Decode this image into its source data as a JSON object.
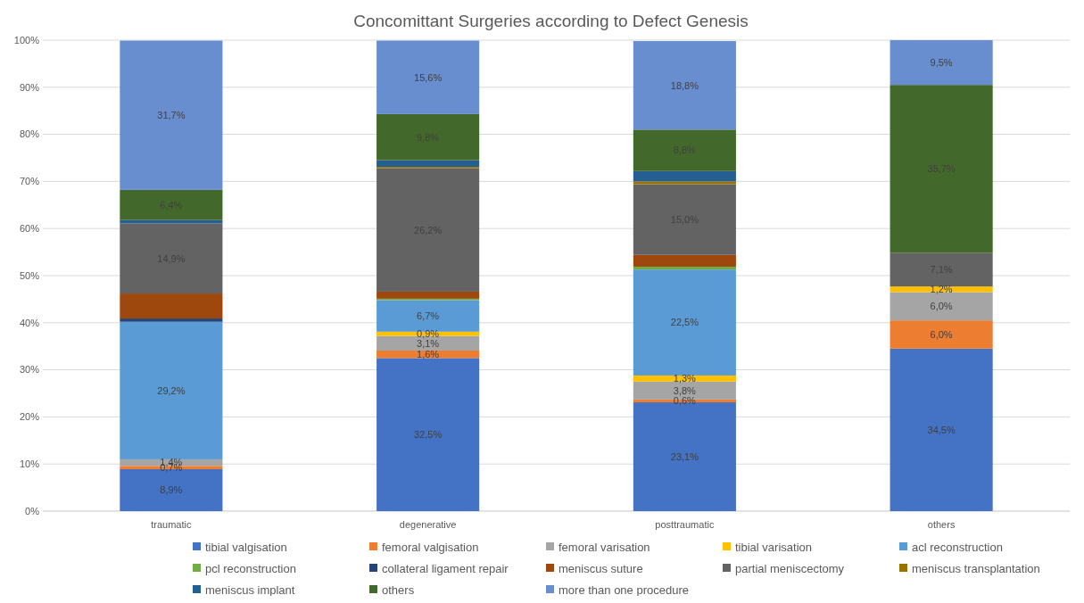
{
  "chart_data": {
    "type": "bar",
    "title": "Concomittant Surgeries according to Defect Genesis",
    "stacked": true,
    "grid": "y",
    "legend": "bottom",
    "categories": [
      "traumatic",
      "degenerative",
      "posttraumatic",
      "others"
    ],
    "ylim": [
      0,
      100
    ],
    "yticks": [
      {
        "value": 0,
        "label": "0%"
      },
      {
        "value": 10,
        "label": "10%"
      },
      {
        "value": 20,
        "label": "20%"
      },
      {
        "value": 30,
        "label": "30%"
      },
      {
        "value": 40,
        "label": "40%"
      },
      {
        "value": 50,
        "label": "50%"
      },
      {
        "value": 60,
        "label": "60%"
      },
      {
        "value": 70,
        "label": "70%"
      },
      {
        "value": 80,
        "label": "80%"
      },
      {
        "value": 90,
        "label": "90%"
      },
      {
        "value": 100,
        "label": "100%"
      }
    ],
    "series": [
      {
        "name": "tibial valgisation",
        "color": "#4472c4",
        "values": [
          8.9,
          32.5,
          23.1,
          34.5
        ],
        "value_labels": [
          "8,9%",
          "32,5%",
          "23,1%",
          "34,5%"
        ]
      },
      {
        "name": "femoral valgisation",
        "color": "#ed7d31",
        "values": [
          0.7,
          1.6,
          0.6,
          6.0
        ],
        "value_labels": [
          "0,7%",
          "1,6%",
          "0,6%",
          "6,0%"
        ]
      },
      {
        "name": "femoral varisation",
        "color": "#a5a5a5",
        "values": [
          1.4,
          3.1,
          3.8,
          6.0
        ],
        "value_labels": [
          "1,4%",
          "3,1%",
          "3,8%",
          "6,0%"
        ]
      },
      {
        "name": "tibial varisation",
        "color": "#ffc000",
        "values": [
          0,
          0.9,
          1.3,
          1.2
        ],
        "value_labels": [
          null,
          "0,9%",
          "1,3%",
          "1,2%"
        ]
      },
      {
        "name": "acl reconstruction",
        "color": "#5b9bd5",
        "values": [
          29.2,
          6.7,
          22.5,
          0
        ],
        "value_labels": [
          "29,2%",
          "6,7%",
          "22,5%",
          null
        ]
      },
      {
        "name": "pcl reconstruction",
        "color": "#70ad47",
        "values": [
          0,
          0.3,
          0.6,
          0
        ],
        "value_labels": [
          null,
          null,
          null,
          null
        ]
      },
      {
        "name": "collateral ligament repair",
        "color": "#264478",
        "values": [
          0.7,
          0,
          0,
          0
        ],
        "value_labels": [
          null,
          null,
          null,
          null
        ]
      },
      {
        "name": "meniscus suture",
        "color": "#9e480e",
        "values": [
          5.3,
          1.5,
          2.5,
          0
        ],
        "value_labels": [
          null,
          null,
          null,
          null
        ]
      },
      {
        "name": "partial meniscectomy",
        "color": "#636363",
        "values": [
          14.9,
          26.2,
          15.0,
          7.1
        ],
        "value_labels": [
          "14,9%",
          "26,2%",
          "15,0%",
          "7,1%"
        ]
      },
      {
        "name": "meniscus transplantation",
        "color": "#997300",
        "values": [
          0,
          0.3,
          0.6,
          0
        ],
        "value_labels": [
          null,
          null,
          null,
          null
        ]
      },
      {
        "name": "meniscus implant",
        "color": "#255e91",
        "values": [
          0.7,
          1.4,
          2.2,
          0
        ],
        "value_labels": [
          null,
          null,
          null,
          null
        ]
      },
      {
        "name": "others",
        "color": "#43682b",
        "values": [
          6.4,
          9.8,
          8.8,
          35.7
        ],
        "value_labels": [
          "6,4%",
          "9,8%",
          "8,8%",
          "35,7%"
        ]
      },
      {
        "name": "more than one procedure",
        "color": "#698ed0",
        "values": [
          31.7,
          15.6,
          18.8,
          9.5
        ],
        "value_labels": [
          "31,7%",
          "15,6%",
          "18,8%",
          "9,5%"
        ]
      }
    ]
  }
}
